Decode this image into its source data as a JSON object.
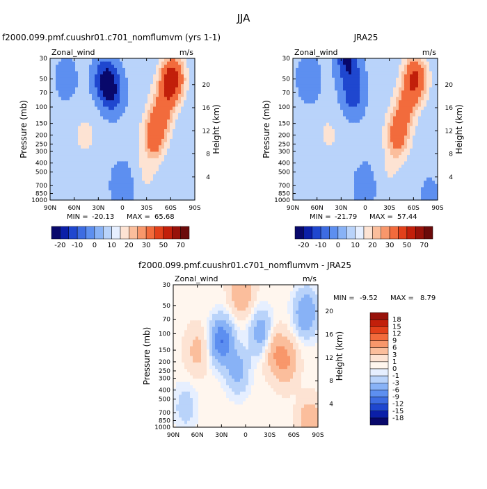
{
  "figure_title": "JJA",
  "chart_data": [
    {
      "type": "heatmap",
      "title": "f2000.099.pmf.cuushr01.c701_nomflumvm (yrs 1-1)",
      "left_label": "Zonal_wind",
      "right_label": "m/s",
      "xlabel": "",
      "ylabel": "Pressure (mb)",
      "y2label": "Height (km)",
      "x_ticks": [
        "90N",
        "60N",
        "30N",
        "0",
        "30S",
        "60S",
        "90S"
      ],
      "y_ticks": [
        "30",
        "50",
        "70",
        "100",
        "150",
        "200",
        "250",
        "300",
        "400",
        "500",
        "700",
        "850",
        "1000"
      ],
      "y2_ticks": [
        "20",
        "16",
        "12",
        "8",
        "4"
      ],
      "stats": {
        "min_label": "MIN =",
        "min": "-20.13",
        "max_label": "MAX =",
        "max": "65.68"
      },
      "features": [
        {
          "lat": 48,
          "p": 200,
          "value": 12
        },
        {
          "lat": 38,
          "p": 200,
          "value": 5
        },
        {
          "lat": 12,
          "p": 70,
          "value": -15
        },
        {
          "lat": 22,
          "p": 50,
          "value": -20
        },
        {
          "lat": -40,
          "p": 200,
          "value": 45
        },
        {
          "lat": -62,
          "p": 50,
          "value": 65
        },
        {
          "lat": -50,
          "p": 100,
          "value": 35
        },
        {
          "lat": -30,
          "p": 500,
          "value": 12
        },
        {
          "lat": 70,
          "p": 50,
          "value": -5
        },
        {
          "lat": 0,
          "p": 700,
          "value": -8
        },
        {
          "lat": -75,
          "p": 850,
          "value": 2
        }
      ],
      "colorbar": {
        "labels": [
          "-20",
          "-10",
          "0",
          "10",
          "20",
          "30",
          "50",
          "70"
        ],
        "colors": [
          "#08086b",
          "#0b1fa8",
          "#1f47cf",
          "#3d6ce2",
          "#5d8ff0",
          "#88b2f6",
          "#b9d3fa",
          "#e6efff",
          "#fde3d3",
          "#fbbe9c",
          "#f8976b",
          "#f26b3c",
          "#e2401a",
          "#c21f0a",
          "#98120a",
          "#6b0a0a"
        ]
      }
    },
    {
      "type": "heatmap",
      "title": "JRA25",
      "left_label": "Zonal_wind",
      "right_label": "m/s",
      "xlabel": "",
      "ylabel": "Pressure (mb)",
      "y2label": "Height (km)",
      "x_ticks": [
        "90N",
        "60N",
        "30N",
        "0",
        "30S",
        "60S",
        "90S"
      ],
      "y_ticks": [
        "30",
        "50",
        "70",
        "100",
        "150",
        "200",
        "250",
        "300",
        "400",
        "500",
        "700",
        "850",
        "1000"
      ],
      "y2_ticks": [
        "20",
        "16",
        "12",
        "8",
        "4"
      ],
      "stats": {
        "min_label": "MIN =",
        "min": "-21.79",
        "max_label": "MAX =",
        "max": "57.44"
      },
      "features": [
        {
          "lat": 45,
          "p": 200,
          "value": 12
        },
        {
          "lat": 15,
          "p": 70,
          "value": -17
        },
        {
          "lat": 22,
          "p": 30,
          "value": -21
        },
        {
          "lat": -40,
          "p": 200,
          "value": 40
        },
        {
          "lat": -62,
          "p": 50,
          "value": 55
        },
        {
          "lat": -50,
          "p": 100,
          "value": 30
        },
        {
          "lat": -30,
          "p": 500,
          "value": 10
        },
        {
          "lat": 70,
          "p": 50,
          "value": -8
        },
        {
          "lat": 0,
          "p": 700,
          "value": -6
        },
        {
          "lat": -80,
          "p": 850,
          "value": -2
        }
      ],
      "colorbar": {
        "labels": [
          "-20",
          "-10",
          "0",
          "10",
          "20",
          "30",
          "50",
          "70"
        ],
        "colors": [
          "#08086b",
          "#0b1fa8",
          "#1f47cf",
          "#3d6ce2",
          "#5d8ff0",
          "#88b2f6",
          "#b9d3fa",
          "#e6efff",
          "#fde3d3",
          "#fbbe9c",
          "#f8976b",
          "#f26b3c",
          "#e2401a",
          "#c21f0a",
          "#98120a",
          "#6b0a0a"
        ]
      }
    },
    {
      "type": "heatmap",
      "title": "f2000.099.pmf.cuushr01.c701_nomflumvm - JRA25",
      "left_label": "Zonal_wind",
      "right_label": "m/s",
      "xlabel": "",
      "ylabel": "Pressure (mb)",
      "y2label": "Height (km)",
      "x_ticks": [
        "90N",
        "60N",
        "30N",
        "0",
        "30S",
        "60S",
        "90S"
      ],
      "y_ticks": [
        "30",
        "50",
        "70",
        "100",
        "150",
        "200",
        "250",
        "300",
        "400",
        "500",
        "700",
        "850",
        "1000"
      ],
      "y2_ticks": [
        "20",
        "16",
        "12",
        "8",
        "4"
      ],
      "stats": {
        "min_label": "MIN =",
        "min": "-9.52",
        "max_label": "MAX =",
        "max": "8.79"
      },
      "features": [
        {
          "lat": 60,
          "p": 150,
          "value": 4
        },
        {
          "lat": 30,
          "p": 120,
          "value": -9
        },
        {
          "lat": 5,
          "p": 35,
          "value": 6
        },
        {
          "lat": -35,
          "p": 150,
          "value": 5
        },
        {
          "lat": -50,
          "p": 200,
          "value": 6
        },
        {
          "lat": -20,
          "p": 100,
          "value": -5
        },
        {
          "lat": -75,
          "p": 60,
          "value": -6
        },
        {
          "lat": 10,
          "p": 250,
          "value": -4
        },
        {
          "lat": -80,
          "p": 900,
          "value": 6
        },
        {
          "lat": 75,
          "p": 600,
          "value": -2
        }
      ],
      "colorbar": {
        "labels": [
          "18",
          "15",
          "12",
          "9",
          "6",
          "3",
          "1",
          "0",
          "-1",
          "-3",
          "-6",
          "-9",
          "-12",
          "-15",
          "-18"
        ],
        "colors": [
          "#98120a",
          "#c21f0a",
          "#e2401a",
          "#f26b3c",
          "#f8976b",
          "#fbbe9c",
          "#fde3d3",
          "#fff6ee",
          "#e6efff",
          "#b9d3fa",
          "#88b2f6",
          "#5d8ff0",
          "#3d6ce2",
          "#1f47cf",
          "#0b1fa8",
          "#08086b"
        ]
      }
    }
  ]
}
